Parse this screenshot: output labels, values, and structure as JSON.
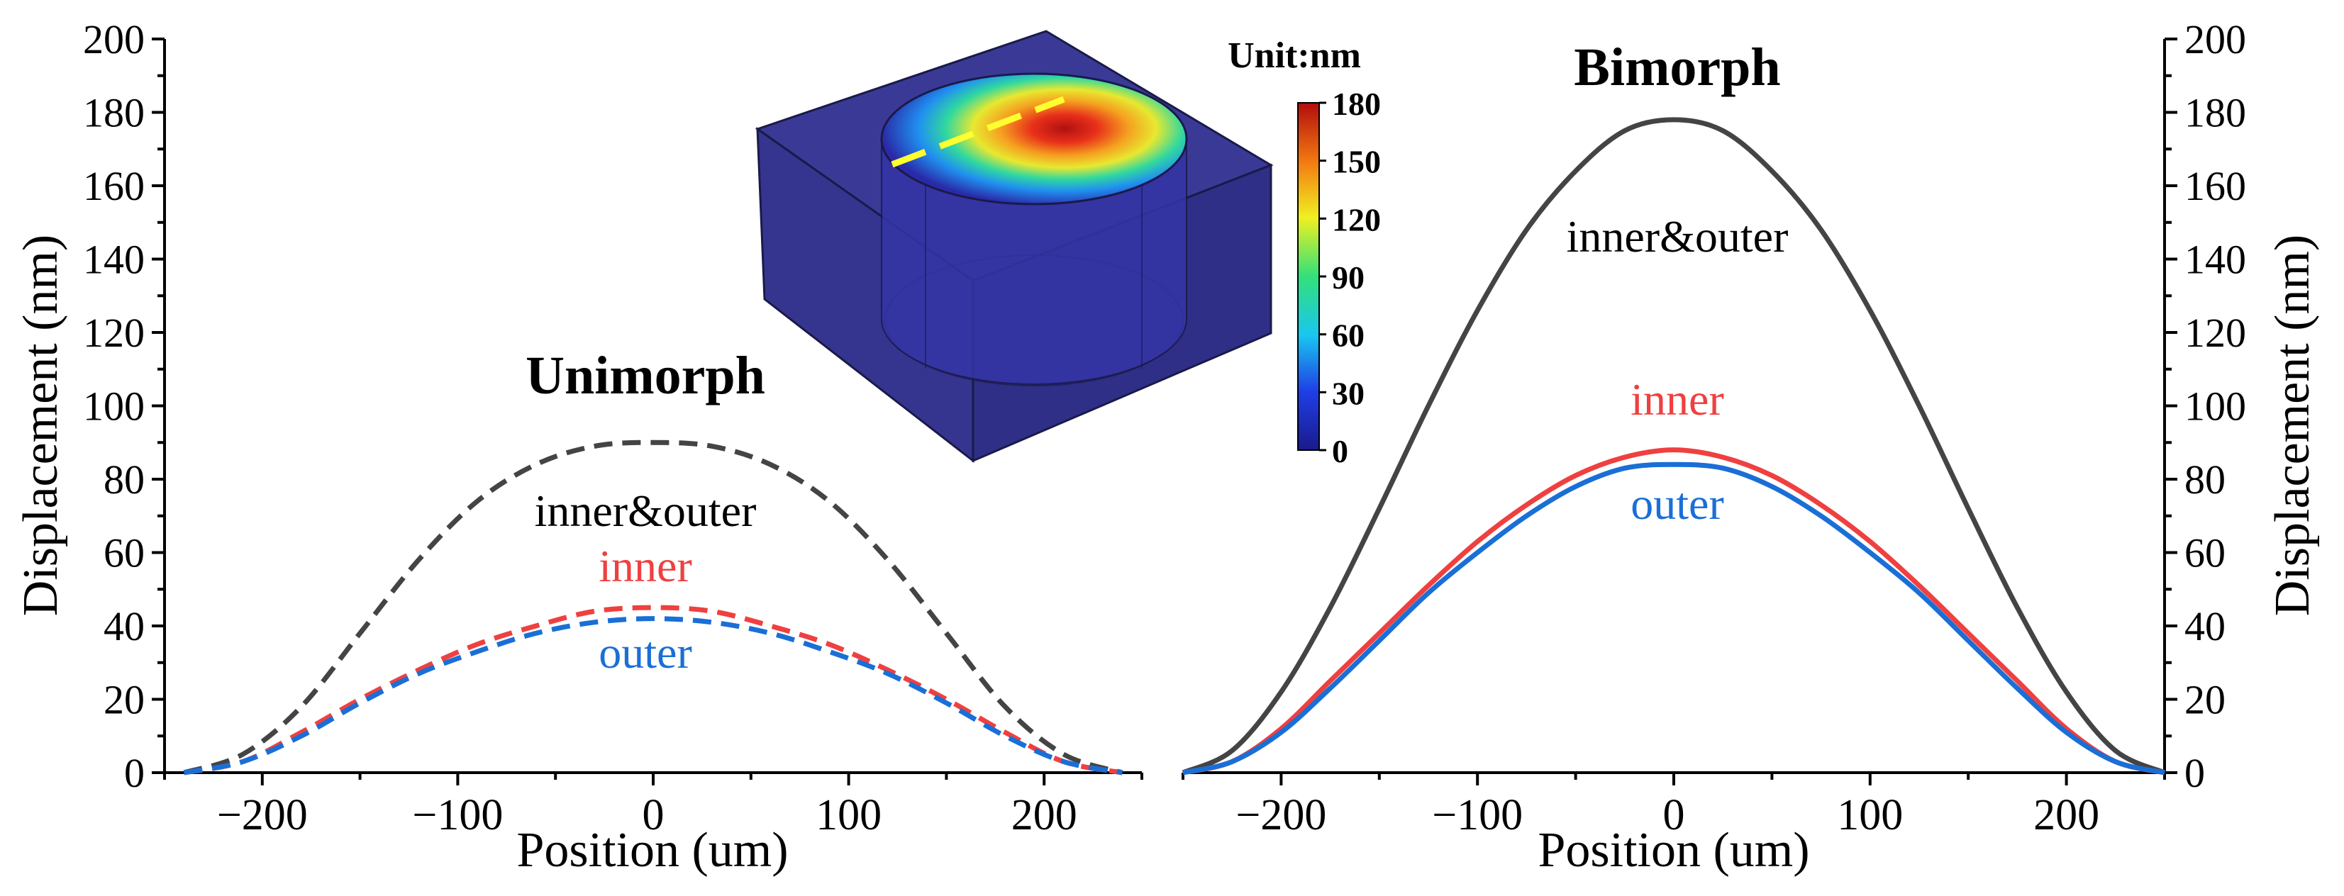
{
  "colors": {
    "combined": "#444444",
    "inner": "#ef4040",
    "outer": "#1a6fd6",
    "axis": "#000000"
  },
  "chart_data": [
    {
      "type": "line",
      "title": "Unimorph",
      "xlabel": "Position (um)",
      "ylabel": "Displacement (nm)",
      "xlim": [
        -250,
        250
      ],
      "ylim": [
        0,
        200
      ],
      "xticks": [
        -200,
        -100,
        0,
        100,
        200
      ],
      "yticks": [
        0,
        20,
        40,
        60,
        80,
        100,
        120,
        140,
        160,
        180,
        200
      ],
      "line_style": "dashed",
      "series": [
        {
          "name": "inner&outer",
          "color": "#444444",
          "x": [
            -240,
            -210,
            -180,
            -150,
            -120,
            -90,
            -60,
            -30,
            0,
            30,
            60,
            90,
            120,
            150,
            180,
            210,
            240
          ],
          "y": [
            0,
            5,
            18,
            38,
            58,
            74,
            84,
            89,
            90,
            89,
            84,
            74,
            58,
            38,
            18,
            5,
            0
          ]
        },
        {
          "name": "inner",
          "color": "#ef4040",
          "x": [
            -240,
            -210,
            -180,
            -150,
            -120,
            -90,
            -60,
            -30,
            0,
            30,
            60,
            90,
            120,
            150,
            180,
            210,
            240
          ],
          "y": [
            0,
            3,
            11,
            20,
            28,
            35,
            40,
            44,
            45,
            44,
            40,
            35,
            28,
            20,
            11,
            3,
            0
          ]
        },
        {
          "name": "outer",
          "color": "#1a6fd6",
          "x": [
            -240,
            -210,
            -180,
            -150,
            -120,
            -90,
            -60,
            -30,
            0,
            30,
            60,
            90,
            120,
            150,
            180,
            210,
            240
          ],
          "y": [
            0,
            3,
            10,
            19,
            27,
            33,
            38,
            41,
            42,
            41,
            38,
            33,
            27,
            19,
            10,
            3,
            0
          ]
        }
      ]
    },
    {
      "type": "line",
      "title": "Bimorph",
      "xlabel": "Position (um)",
      "ylabel": "Displacement (nm)",
      "xlim": [
        -250,
        250
      ],
      "ylim": [
        0,
        200
      ],
      "xticks": [
        -200,
        -100,
        0,
        100,
        200
      ],
      "yticks": [
        0,
        20,
        40,
        60,
        80,
        100,
        120,
        140,
        160,
        180,
        200
      ],
      "line_style": "solid",
      "series": [
        {
          "name": "inner&outer",
          "color": "#444444",
          "x": [
            -250,
            -225,
            -200,
            -175,
            -150,
            -125,
            -100,
            -75,
            -50,
            -25,
            0,
            25,
            50,
            75,
            100,
            125,
            150,
            175,
            200,
            225,
            250
          ],
          "y": [
            0,
            6,
            22,
            45,
            72,
            100,
            126,
            148,
            164,
            175,
            178,
            175,
            164,
            148,
            126,
            100,
            72,
            45,
            22,
            6,
            0
          ]
        },
        {
          "name": "inner",
          "color": "#ef4040",
          "x": [
            -250,
            -225,
            -200,
            -175,
            -150,
            -125,
            -100,
            -75,
            -50,
            -25,
            0,
            25,
            50,
            75,
            100,
            125,
            150,
            175,
            200,
            225,
            250
          ],
          "y": [
            0,
            3,
            12,
            25,
            38,
            51,
            63,
            73,
            81,
            86,
            88,
            86,
            81,
            73,
            63,
            51,
            38,
            25,
            12,
            3,
            0
          ]
        },
        {
          "name": "outer",
          "color": "#1a6fd6",
          "x": [
            -250,
            -225,
            -200,
            -175,
            -150,
            -125,
            -100,
            -75,
            -50,
            -25,
            0,
            25,
            50,
            75,
            100,
            125,
            150,
            175,
            200,
            225,
            250
          ],
          "y": [
            0,
            3,
            11,
            23,
            36,
            49,
            60,
            70,
            78,
            83,
            84,
            83,
            78,
            70,
            60,
            49,
            36,
            23,
            11,
            3,
            0
          ]
        }
      ]
    }
  ],
  "inset": {
    "colorbar_title": "Unit:nm",
    "colorbar_ticks": [
      "180",
      "150",
      "120",
      "90",
      "60",
      "30",
      "0"
    ]
  }
}
